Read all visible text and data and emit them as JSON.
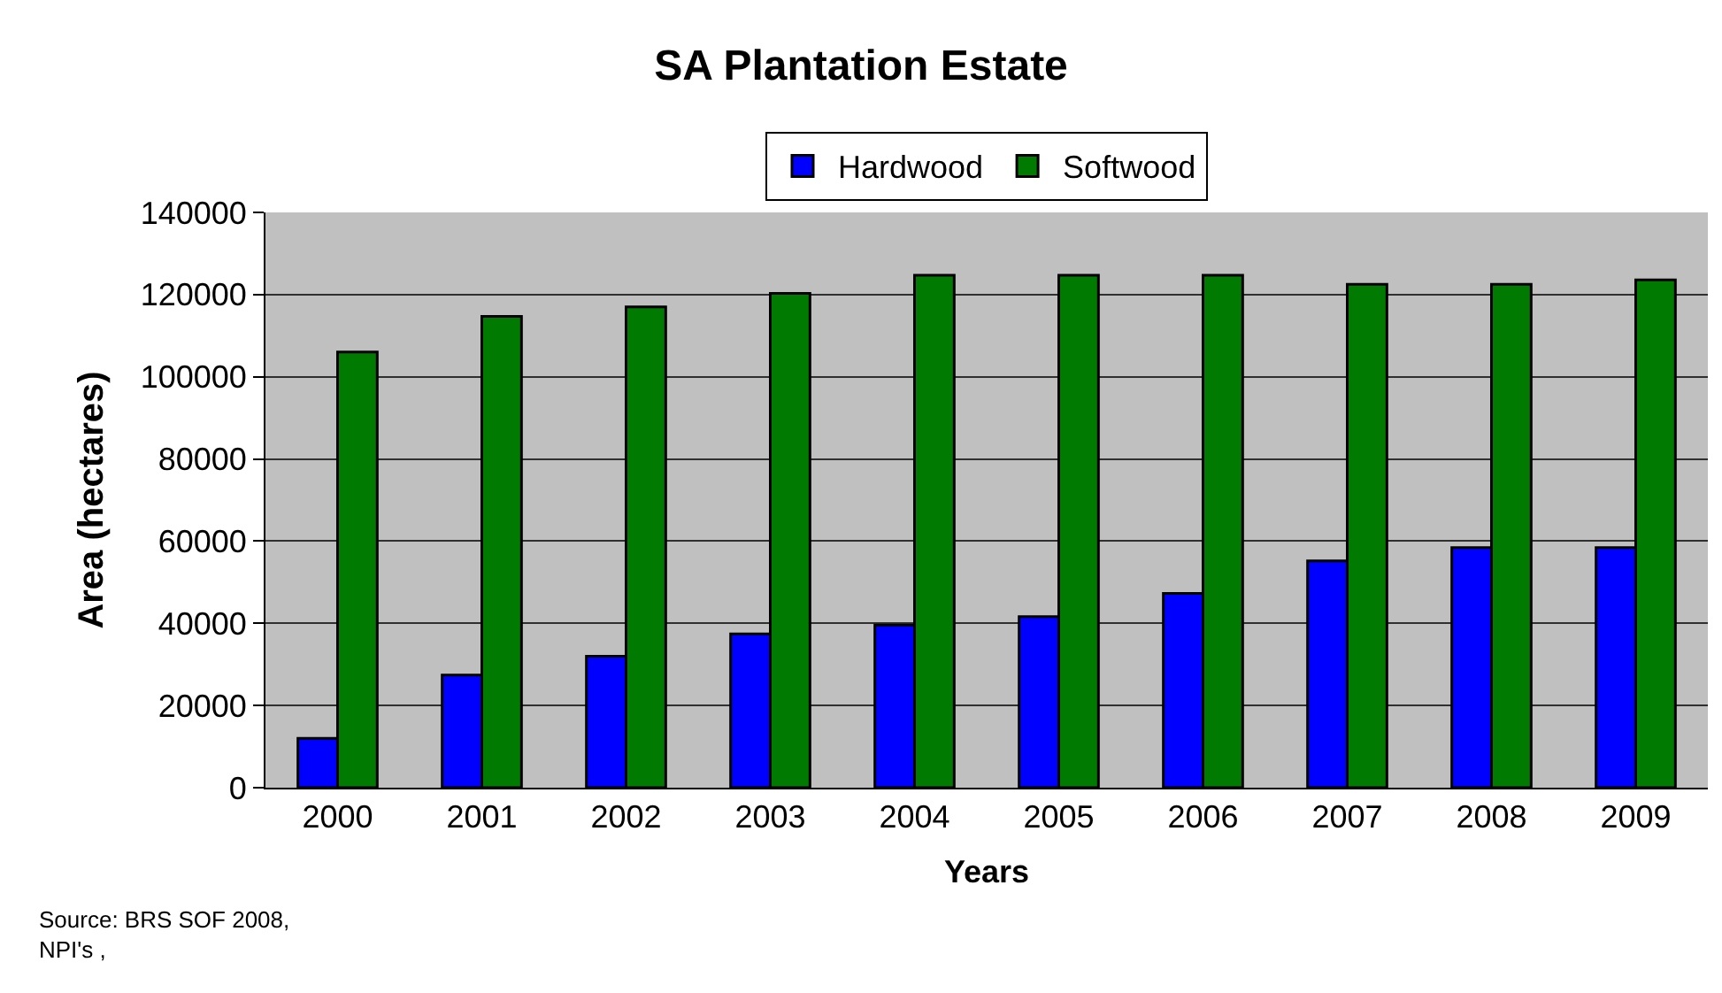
{
  "chart_data": {
    "type": "bar",
    "title": "SA Plantation Estate",
    "xlabel": "Years",
    "ylabel": "Area (hectares)",
    "categories": [
      "2000",
      "2001",
      "2002",
      "2003",
      "2004",
      "2005",
      "2006",
      "2007",
      "2008",
      "2009"
    ],
    "series": [
      {
        "name": "Hardwood",
        "color": "#0000ff",
        "values": [
          12000,
          27400,
          32000,
          37400,
          39600,
          41600,
          47300,
          55200,
          58400,
          58400
        ]
      },
      {
        "name": "Softwood",
        "color": "#007a00",
        "values": [
          106000,
          114700,
          117000,
          120300,
          124700,
          124700,
          124700,
          122500,
          122500,
          123600
        ]
      }
    ],
    "ylim": [
      0,
      140000
    ],
    "yticks": [
      0,
      20000,
      40000,
      60000,
      80000,
      100000,
      120000,
      140000
    ],
    "grid": "y",
    "legend": "top",
    "annotations": [
      "Source: BRS SOF 2008,\nNPI's ,"
    ]
  }
}
